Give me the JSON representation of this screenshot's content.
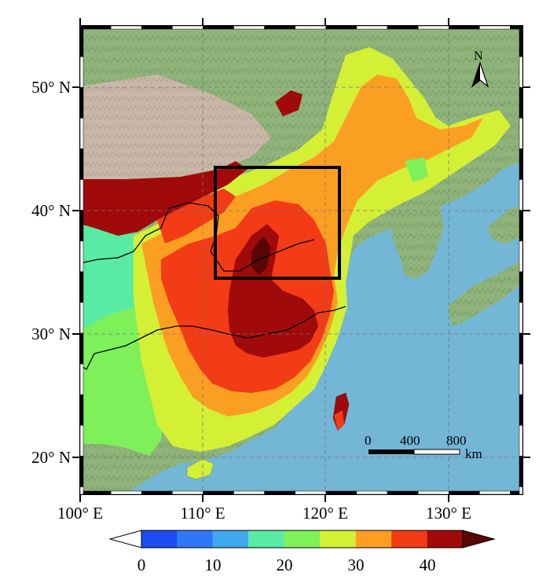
{
  "map": {
    "longitude_ticks": [
      "100° E",
      "110° E",
      "120° E",
      "130° E"
    ],
    "latitude_ticks": [
      "50° N",
      "40° N",
      "30° N",
      "20° N"
    ],
    "colors": {
      "land_relief": "#8fb37a",
      "mountain": "#c9b8a8",
      "ocean": "#73b6d6",
      "frame": "#000000"
    },
    "study_area_box": {
      "lon_min": 111,
      "lon_max": 121,
      "lat_min": 34.5,
      "lat_max": 43.5
    },
    "north_arrow_label": "N",
    "scale_bar": {
      "ticks": [
        "0",
        "400",
        "800"
      ],
      "unit": "km"
    }
  },
  "colorbar": {
    "ticks": [
      "0",
      "10",
      "20",
      "30",
      "40"
    ],
    "classes": [
      {
        "from": 0,
        "to": 5,
        "color": "#1a4cf0"
      },
      {
        "from": 5,
        "to": 10,
        "color": "#2f78f5"
      },
      {
        "from": 10,
        "to": 15,
        "color": "#3fa8ee"
      },
      {
        "from": 15,
        "to": 20,
        "color": "#59eaa4"
      },
      {
        "from": 20,
        "to": 25,
        "color": "#7df05a"
      },
      {
        "from": 25,
        "to": 30,
        "color": "#d4f035"
      },
      {
        "from": 30,
        "to": 35,
        "color": "#fb9f22"
      },
      {
        "from": 35,
        "to": 40,
        "color": "#f33b16"
      },
      {
        "from": 40,
        "to": 45,
        "color": "#a10a0a"
      }
    ],
    "under_color": "#ffffff",
    "over_color": "#5a0505",
    "vmin": 0,
    "vmax": 45
  }
}
